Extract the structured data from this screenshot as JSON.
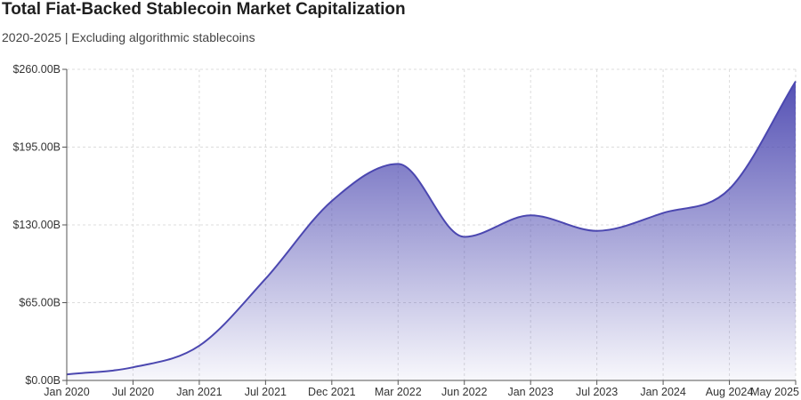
{
  "chart_data": {
    "type": "area",
    "title": "Total Fiat-Backed Stablecoin Market Capitalization",
    "subtitle": "2020-2025 | Excluding algorithmic stablecoins",
    "xlabel": "",
    "ylabel": "",
    "x_ticks": [
      "Jan 2020",
      "Jul 2020",
      "Jan 2021",
      "Jul 2021",
      "Dec 2021",
      "Mar 2022",
      "Jun 2022",
      "Jan 2023",
      "Jul 2023",
      "Jan 2024",
      "Aug 2024",
      "May 2025"
    ],
    "y_ticks": [
      "$0.00B",
      "$65.00B",
      "$130.00B",
      "$195.00B",
      "$260.00B"
    ],
    "ylim": [
      0,
      260
    ],
    "grid": true,
    "color": "#4b47b0",
    "series": [
      {
        "x": [
          "Jan 2020",
          "Jul 2020",
          "Jan 2021",
          "Jul 2021",
          "Dec 2021",
          "Mar 2022",
          "Jun 2022",
          "Jan 2023",
          "Jul 2023",
          "Jan 2024",
          "Aug 2024",
          "May 2025"
        ],
        "values": [
          5,
          11,
          29,
          85,
          150,
          181,
          120,
          138,
          125,
          140,
          160,
          250
        ]
      }
    ]
  }
}
